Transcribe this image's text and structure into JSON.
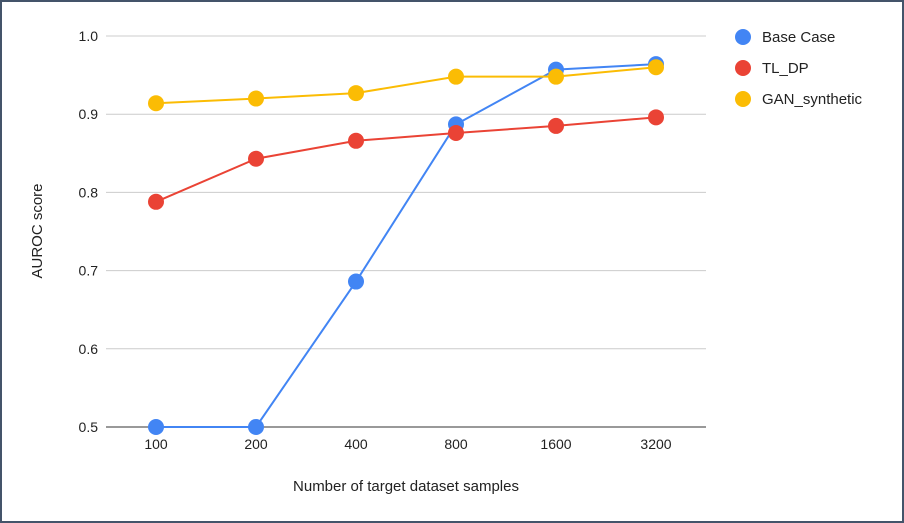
{
  "chart_data": {
    "type": "line",
    "title": "",
    "xlabel": "Number of target dataset samples",
    "ylabel": "AUROC score",
    "categories": [
      "100",
      "200",
      "400",
      "800",
      "1600",
      "3200"
    ],
    "ylim": [
      0.5,
      1.0
    ],
    "yticks": [
      "0.5",
      "0.6",
      "0.7",
      "0.8",
      "0.9",
      "1.0"
    ],
    "grid": true,
    "legend_position": "right",
    "series": [
      {
        "name": "Base Case",
        "color": "#4285f4",
        "values": [
          0.5,
          0.5,
          0.686,
          0.887,
          0.957,
          0.964
        ]
      },
      {
        "name": "TL_DP",
        "color": "#ea4335",
        "values": [
          0.788,
          0.843,
          0.866,
          0.876,
          0.885,
          0.896
        ]
      },
      {
        "name": "GAN_synthetic",
        "color": "#fbbc04",
        "values": [
          0.914,
          0.92,
          0.927,
          0.948,
          0.948,
          0.96
        ]
      }
    ]
  }
}
